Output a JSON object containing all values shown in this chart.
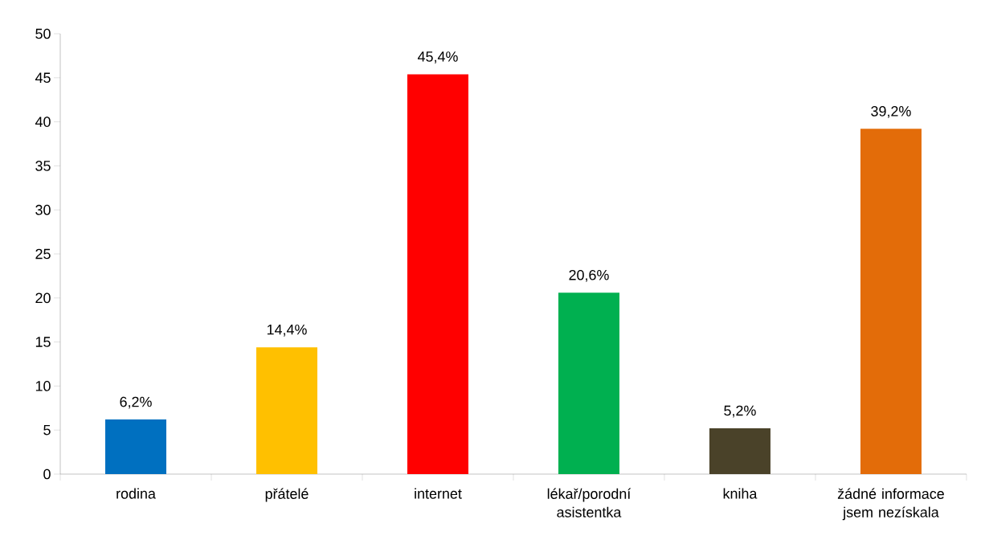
{
  "chart_data": {
    "type": "bar",
    "categories": [
      "rodina",
      "přátelé",
      "internet",
      "lékař/porodní asistentka",
      "kniha",
      "žádné informace jsem nezískala"
    ],
    "values": [
      6.2,
      14.4,
      45.4,
      20.6,
      5.2,
      39.2
    ],
    "colors": [
      "#0070c0",
      "#ffc000",
      "#ff0000",
      "#00b050",
      "#4a4229",
      "#e36c09"
    ],
    "value_labels": [
      "6,2%",
      "14,4%",
      "45,4%",
      "20,6%",
      "5,2%",
      "39,2%"
    ],
    "ylim": [
      0,
      50
    ],
    "yticks": [
      0,
      5,
      10,
      15,
      20,
      25,
      30,
      35,
      40,
      45,
      50
    ]
  }
}
